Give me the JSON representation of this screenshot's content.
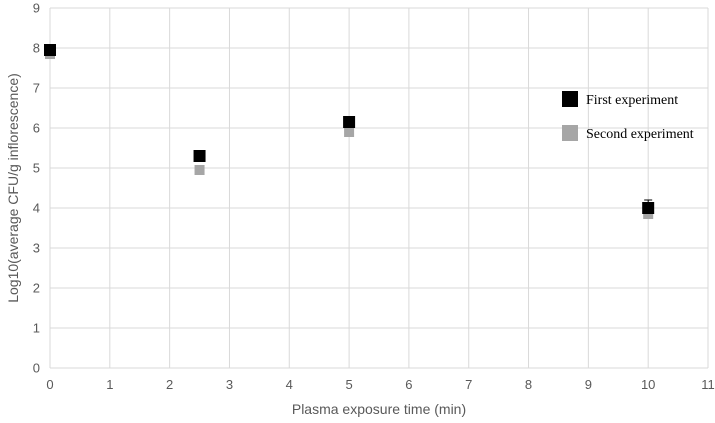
{
  "chart_data": {
    "type": "scatter",
    "title": "",
    "xlabel": "Plasma exposure time (min)",
    "ylabel": "Log10(average CFU/g inflorescence)",
    "xlim": [
      0,
      11
    ],
    "ylim": [
      0,
      9
    ],
    "x_ticks": [
      0,
      1,
      2,
      3,
      4,
      5,
      6,
      7,
      8,
      9,
      10,
      11
    ],
    "y_ticks": [
      0,
      1,
      2,
      3,
      4,
      5,
      6,
      7,
      8,
      9
    ],
    "grid": true,
    "legend_position": "right",
    "series": [
      {
        "name": "First experiment",
        "color": "#000000",
        "points": [
          {
            "x": 0,
            "y": 7.95
          },
          {
            "x": 2.5,
            "y": 5.3
          },
          {
            "x": 5,
            "y": 6.15
          },
          {
            "x": 10,
            "y": 4.0,
            "error": 0.2
          }
        ]
      },
      {
        "name": "Second experiment",
        "color": "#a6a6a6",
        "points": [
          {
            "x": 0,
            "y": 7.85
          },
          {
            "x": 2.5,
            "y": 4.95
          },
          {
            "x": 5,
            "y": 5.9
          },
          {
            "x": 10,
            "y": 3.85
          }
        ]
      }
    ]
  }
}
